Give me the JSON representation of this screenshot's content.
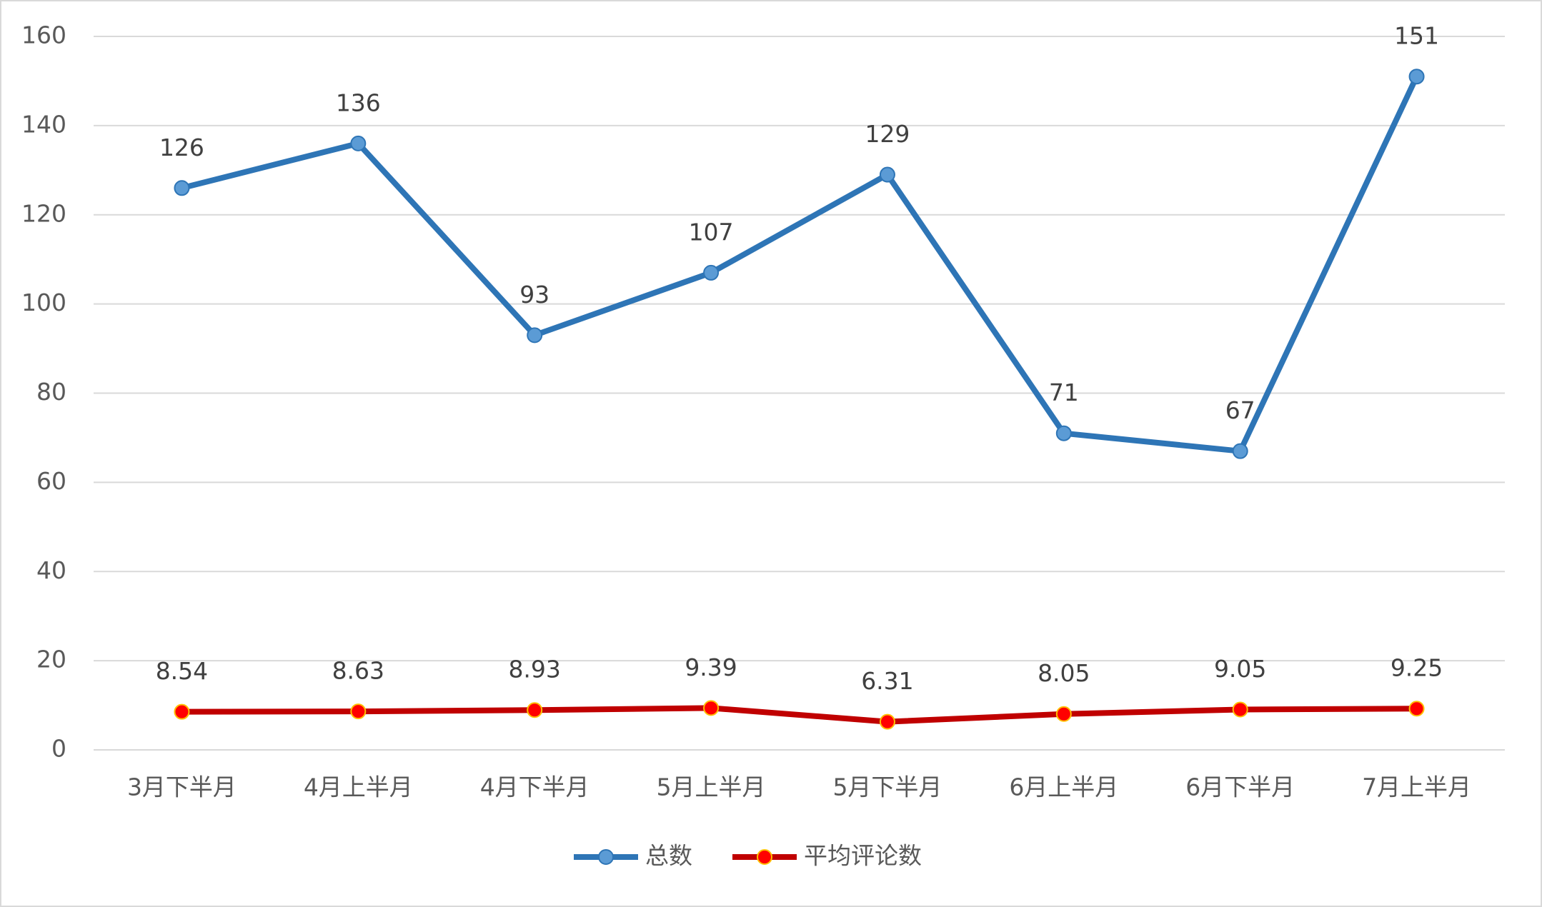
{
  "chart_data": {
    "type": "line",
    "categories": [
      "3月下半月",
      "4月上半月",
      "4月下半月",
      "5月上半月",
      "5月下半月",
      "6月上半月",
      "6月下半月",
      "7月上半月"
    ],
    "series": [
      {
        "name": "总数",
        "color": "#2e75b6",
        "marker_color": "#5b9bd5",
        "values": [
          126,
          136,
          93,
          107,
          129,
          71,
          67,
          151
        ]
      },
      {
        "name": "平均评论数",
        "color": "#c00000",
        "marker_color": "#ff0000",
        "values": [
          8.54,
          8.63,
          8.93,
          9.39,
          6.31,
          8.05,
          9.05,
          9.25
        ]
      }
    ],
    "ylim": [
      0,
      160
    ],
    "yticks": [
      0,
      20,
      40,
      60,
      80,
      100,
      120,
      140,
      160
    ],
    "grid": true,
    "legend": "bottom"
  }
}
